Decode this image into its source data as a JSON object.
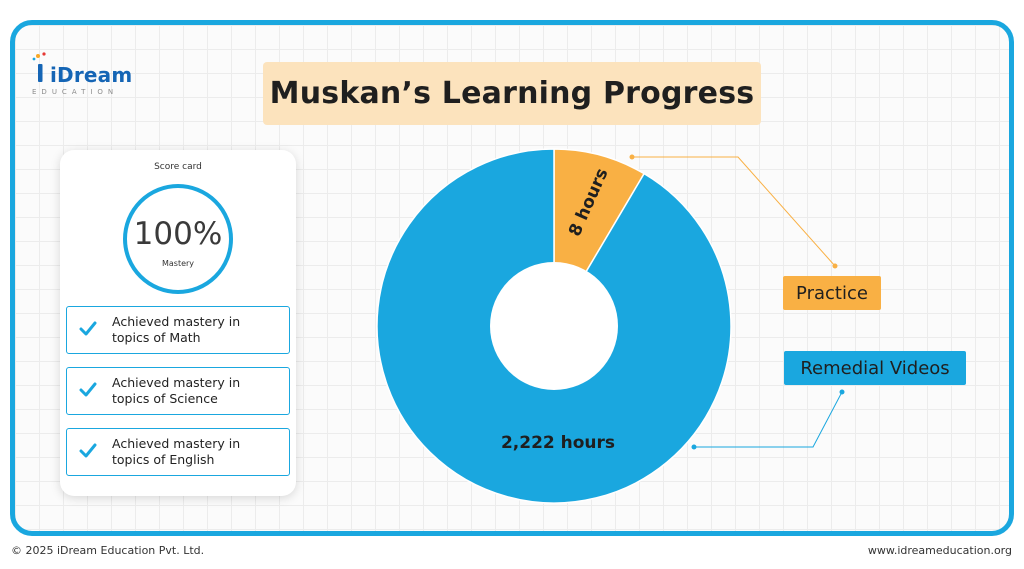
{
  "brand": {
    "name": "iDream",
    "sub": "EDUCATION"
  },
  "title": "Muskan’s Learning Progress",
  "score_card": {
    "title": "Score card",
    "value": "100%",
    "label": "Mastery",
    "items": [
      {
        "line1": "Achieved mastery in",
        "line2": "topics of Math"
      },
      {
        "line1": "Achieved mastery in",
        "line2": "topics of Science"
      },
      {
        "line1": "Achieved mastery in",
        "line2": "topics of English"
      }
    ]
  },
  "chart_data": {
    "type": "pie",
    "donut": true,
    "title": "Muskan’s Learning Progress",
    "slices": [
      {
        "name": "Practice",
        "value": 8,
        "value_label": "8 hours",
        "color": "#f9b044"
      },
      {
        "name": "Remedial Videos",
        "value": 2222,
        "value_label": "2,222 hours",
        "color": "#1aa7df"
      }
    ],
    "legend": [
      "Practice",
      "Remedial Videos"
    ],
    "legend_placement": "right"
  },
  "colors": {
    "accent": "#1aa7df",
    "practice": "#f9b044",
    "title_bg": "#fce3bd"
  },
  "footer": {
    "copyright": "© 2025 iDream Education Pvt. Ltd.",
    "website": "www.idreameducation.org"
  }
}
